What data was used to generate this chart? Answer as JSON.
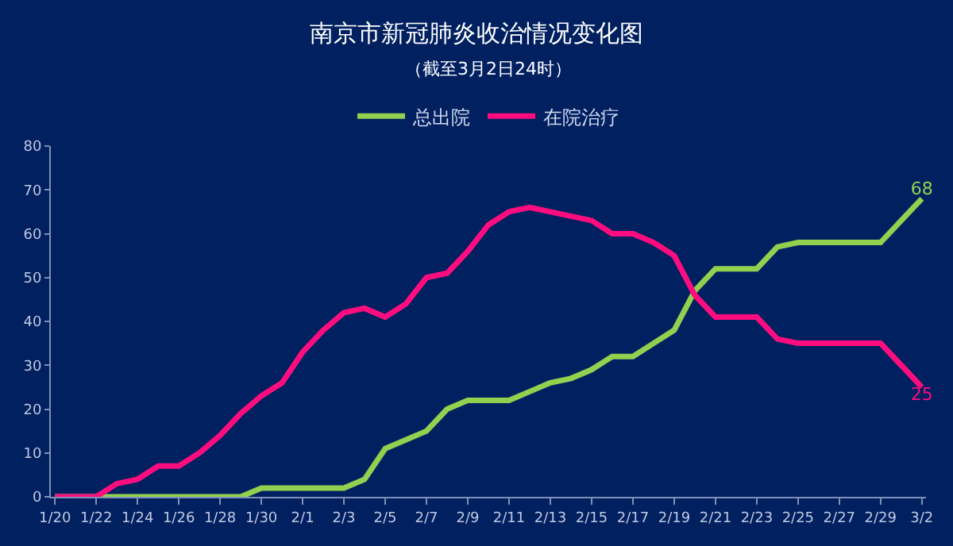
{
  "chart_data": {
    "type": "line",
    "title": "南京市新冠肺炎收治情况变化图",
    "subtitle": "（截至3月2日24时）",
    "categories": [
      "1/20",
      null,
      "1/22",
      null,
      "1/24",
      null,
      "1/26",
      null,
      "1/28",
      null,
      "1/30",
      null,
      "2/1",
      null,
      "2/3",
      null,
      "2/5",
      null,
      "2/7",
      null,
      "2/9",
      null,
      "2/11",
      null,
      "2/13",
      null,
      "2/15",
      null,
      "2/17",
      null,
      "2/19",
      null,
      "2/21",
      null,
      "2/23",
      null,
      "2/25",
      null,
      "2/27",
      null,
      "2/29",
      null,
      "3/2"
    ],
    "series": [
      {
        "name": "总出院",
        "color": "#92d050",
        "values": [
          0,
          0,
          0,
          0,
          0,
          0,
          0,
          0,
          0,
          0,
          2,
          2,
          2,
          2,
          2,
          4,
          11,
          13,
          15,
          20,
          22,
          22,
          22,
          24,
          26,
          27,
          29,
          32,
          32,
          35,
          38,
          47,
          52,
          52,
          52,
          57,
          58,
          58,
          58,
          58,
          58,
          63,
          68
        ],
        "value_labels": [
          null,
          null,
          null,
          null,
          null,
          null,
          null,
          null,
          null,
          null,
          null,
          null,
          null,
          null,
          null,
          null,
          null,
          null,
          null,
          null,
          null,
          null,
          null,
          null,
          null,
          null,
          null,
          null,
          null,
          null,
          null,
          null,
          null,
          null,
          null,
          null,
          null,
          null,
          null,
          null,
          null,
          null,
          "68"
        ]
      },
      {
        "name": "在院治疗",
        "color": "#ff0d7f",
        "values": [
          0,
          0,
          0,
          3,
          4,
          7,
          7,
          10,
          14,
          19,
          23,
          26,
          33,
          38,
          42,
          43,
          41,
          44,
          50,
          51,
          56,
          62,
          65,
          66,
          65,
          64,
          63,
          60,
          60,
          58,
          55,
          46,
          41,
          41,
          41,
          36,
          35,
          35,
          35,
          35,
          35,
          30,
          25
        ],
        "value_labels": [
          null,
          null,
          null,
          null,
          null,
          null,
          null,
          null,
          null,
          null,
          null,
          null,
          null,
          null,
          null,
          null,
          null,
          null,
          null,
          null,
          null,
          null,
          null,
          null,
          null,
          null,
          null,
          null,
          null,
          null,
          null,
          null,
          null,
          null,
          null,
          null,
          null,
          null,
          null,
          null,
          null,
          null,
          "25"
        ]
      }
    ],
    "ylim": [
      0,
      80
    ],
    "yticks": [
      0,
      10,
      20,
      30,
      40,
      50,
      60,
      70,
      80
    ],
    "grid": false,
    "legend": "top",
    "marker": "none",
    "line_style": "solid"
  }
}
